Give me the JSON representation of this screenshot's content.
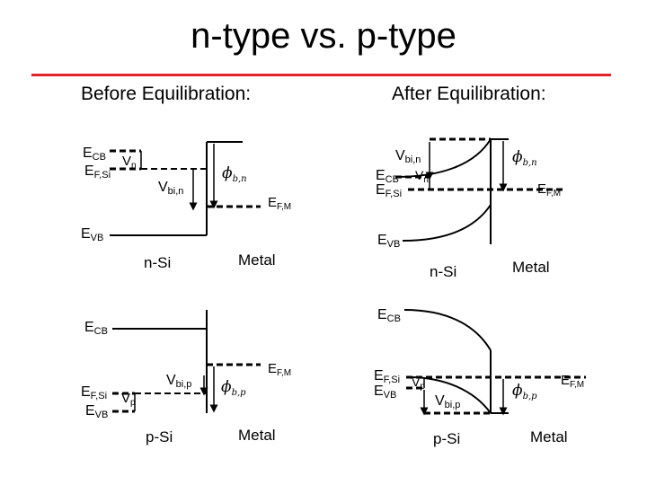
{
  "title": "n-type vs. p-type",
  "headings": {
    "before": "Before Equilibration:",
    "after": "After Equilibration:"
  },
  "labels": {
    "ecb_main": "E",
    "ecb_sub": "CB",
    "efsi_main": "E",
    "efsi_sub": "F,Si",
    "evb_main": "E",
    "evb_sub": "VB",
    "efm_main": "E",
    "efm_sub": "F,M",
    "vn_main": "V",
    "vn_sub": "n",
    "vp_main": "V",
    "vp_sub": "p",
    "vbin_main": "V",
    "vbin_sub": "bi,n",
    "vbip_main": "V",
    "vbip_sub": "bi,p",
    "phibn_main": "ϕ",
    "phibn_sub": "b,n",
    "phibp_main": "ϕ",
    "phibp_sub": "b,p",
    "nsi": "n-Si",
    "psi": "p-Si",
    "metal": "Metal"
  },
  "colors": {
    "accent_rule": "#e3242b",
    "line": "#000000"
  }
}
